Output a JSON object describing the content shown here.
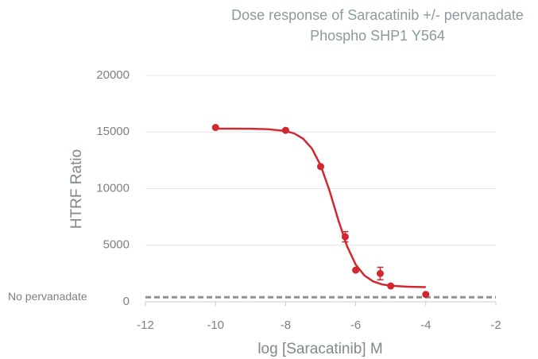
{
  "chart_data": {
    "type": "scatter",
    "title": "Dose response of Saracatinib +/- pervanadate",
    "subtitle": "Phospho SHP1 Y564",
    "x_label": "log [Saracatinib] M",
    "y_label": "HTRF Ratio",
    "xlim": [
      -12,
      -2
    ],
    "xticks": [
      -12,
      -10,
      -8,
      -6,
      -4,
      -2
    ],
    "ylim": [
      0,
      20000
    ],
    "yticks": [
      0,
      5000,
      10000,
      15000,
      20000
    ],
    "grid": true,
    "series": [
      {
        "type": "scatter",
        "color": "#d0282e",
        "x": [
          -10,
          -8,
          -7,
          -6.3,
          -6,
          -5.3,
          -5,
          -4
        ],
        "values": [
          15400,
          15150,
          11950,
          5750,
          2800,
          2500,
          1400,
          650
        ],
        "errors": [
          null,
          null,
          null,
          450,
          null,
          550,
          null,
          null
        ]
      },
      {
        "type": "line",
        "color": "#d0282e",
        "x": [
          -10,
          -9.5,
          -9,
          -8.5,
          -8,
          -7.75,
          -7.5,
          -7.25,
          -7,
          -6.75,
          -6.5,
          -6.25,
          -6,
          -5.75,
          -5.5,
          -5.25,
          -5,
          -4.5,
          -4
        ],
        "values": [
          15300,
          15300,
          15290,
          15250,
          15090,
          14870,
          14410,
          13550,
          12050,
          9850,
          7260,
          4940,
          3290,
          2320,
          1800,
          1540,
          1420,
          1330,
          1300
        ]
      }
    ],
    "reference_line": {
      "label": "No pervanadate",
      "value": 400,
      "color": "#8c9696",
      "style": "dashed"
    }
  }
}
